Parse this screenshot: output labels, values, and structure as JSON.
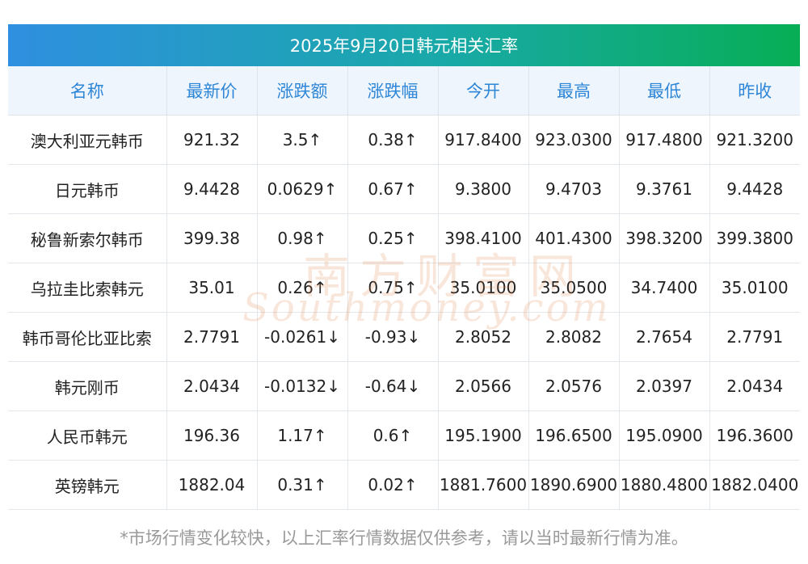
{
  "title": "2025年9月20日韩元相关汇率",
  "columns": [
    "名称",
    "最新价",
    "涨跌额",
    "涨跌幅",
    "今开",
    "最高",
    "最低",
    "昨收"
  ],
  "rows": [
    {
      "name": "澳大利亚元韩币",
      "latest": "921.32",
      "change": "3.5↑",
      "change_pct": "0.38↑",
      "open": "917.8400",
      "high": "923.0300",
      "low": "917.4800",
      "prev_close": "921.3200",
      "direction": "up"
    },
    {
      "name": "日元韩币",
      "latest": "9.4428",
      "change": "0.0629↑",
      "change_pct": "0.67↑",
      "open": "9.3800",
      "high": "9.4703",
      "low": "9.3761",
      "prev_close": "9.4428",
      "direction": "up"
    },
    {
      "name": "秘鲁新索尔韩币",
      "latest": "399.38",
      "change": "0.98↑",
      "change_pct": "0.25↑",
      "open": "398.4100",
      "high": "401.4300",
      "low": "398.3200",
      "prev_close": "399.3800",
      "direction": "up"
    },
    {
      "name": "乌拉圭比索韩元",
      "latest": "35.01",
      "change": "0.26↑",
      "change_pct": "0.75↑",
      "open": "35.0100",
      "high": "35.0500",
      "low": "34.7400",
      "prev_close": "35.0100",
      "direction": "up"
    },
    {
      "name": "韩币哥伦比亚比索",
      "latest": "2.7791",
      "change": "-0.0261↓",
      "change_pct": "-0.93↓",
      "open": "2.8052",
      "high": "2.8082",
      "low": "2.7654",
      "prev_close": "2.7791",
      "direction": "down"
    },
    {
      "name": "韩元刚币",
      "latest": "2.0434",
      "change": "-0.0132↓",
      "change_pct": "-0.64↓",
      "open": "2.0566",
      "high": "2.0576",
      "low": "2.0397",
      "prev_close": "2.0434",
      "direction": "down"
    },
    {
      "name": "人民币韩元",
      "latest": "196.36",
      "change": "1.17↑",
      "change_pct": "0.6↑",
      "open": "195.1900",
      "high": "196.6500",
      "low": "195.0900",
      "prev_close": "196.3600",
      "direction": "up"
    },
    {
      "name": "英镑韩元",
      "latest": "1882.04",
      "change": "0.31↑",
      "change_pct": "0.02↑",
      "open": "1881.7600",
      "high": "1890.6900",
      "low": "1880.4800",
      "prev_close": "1882.0400",
      "direction": "up"
    }
  ],
  "colors": {
    "up": "#e5201f",
    "down": "#1a8a1a",
    "header_text": "#2e86d6"
  },
  "watermark": {
    "cn": "南方财富网",
    "en": "Southmoney.com"
  },
  "footnote": "*市场行情变化较快，以上汇率行情数据仅供参考，请以当时最新行情为准。"
}
